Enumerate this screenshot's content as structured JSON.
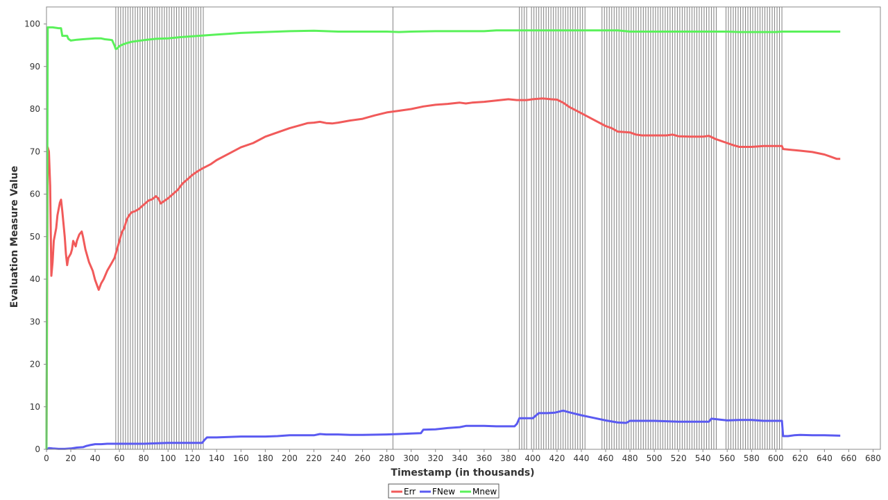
{
  "chart_data": {
    "type": "line",
    "title": "",
    "xlabel": "Timestamp (in thousands)",
    "ylabel": "Evaluation Measure Value",
    "xlim": [
      0,
      686
    ],
    "ylim": [
      0,
      104
    ],
    "xticks": [
      0,
      20,
      40,
      60,
      80,
      100,
      120,
      140,
      160,
      180,
      200,
      220,
      240,
      260,
      280,
      300,
      320,
      340,
      360,
      380,
      400,
      420,
      440,
      460,
      480,
      500,
      520,
      540,
      560,
      580,
      600,
      620,
      640,
      660,
      680
    ],
    "yticks": [
      0,
      10,
      20,
      30,
      40,
      50,
      60,
      70,
      80,
      90,
      100
    ],
    "grid": false,
    "legend_position": "bottom-center",
    "drift_markers": [
      57,
      59,
      61,
      63,
      65,
      67,
      69,
      71,
      73,
      75,
      77,
      79,
      81,
      83,
      85,
      87,
      89,
      91,
      93,
      95,
      97,
      99,
      101,
      103,
      105,
      107,
      109,
      111,
      113,
      115,
      117,
      119,
      121,
      123,
      125,
      127,
      129,
      285,
      389,
      391,
      393,
      395,
      399,
      401,
      403,
      405,
      407,
      409,
      411,
      413,
      415,
      417,
      419,
      421,
      423,
      425,
      427,
      429,
      431,
      433,
      435,
      437,
      439,
      441,
      443,
      457,
      459,
      461,
      463,
      465,
      467,
      469,
      471,
      473,
      475,
      477,
      479,
      481,
      483,
      485,
      487,
      489,
      491,
      493,
      495,
      497,
      499,
      501,
      503,
      505,
      507,
      509,
      511,
      513,
      515,
      517,
      519,
      521,
      523,
      525,
      527,
      529,
      531,
      533,
      535,
      537,
      539,
      541,
      543,
      545,
      547,
      549,
      551,
      559,
      561,
      563,
      565,
      567,
      569,
      571,
      573,
      575,
      577,
      579,
      581,
      583,
      585,
      587,
      589,
      591,
      593,
      595,
      597,
      599,
      601,
      603,
      605
    ],
    "series": [
      {
        "name": "Err",
        "color": "#f15a5a",
        "points": [
          [
            0,
            0
          ],
          [
            1,
            71
          ],
          [
            2,
            70
          ],
          [
            3,
            62
          ],
          [
            4,
            40.8
          ],
          [
            5,
            44
          ],
          [
            6,
            49
          ],
          [
            8,
            52
          ],
          [
            9,
            55
          ],
          [
            11,
            58
          ],
          [
            12,
            58.7
          ],
          [
            13,
            56
          ],
          [
            15,
            50
          ],
          [
            16,
            46
          ],
          [
            17,
            43.3
          ],
          [
            18,
            45
          ],
          [
            20,
            46
          ],
          [
            21,
            47
          ],
          [
            22,
            49
          ],
          [
            24,
            47.7
          ],
          [
            25,
            49
          ],
          [
            27,
            50.5
          ],
          [
            29,
            51.2
          ],
          [
            30,
            50
          ],
          [
            32,
            47
          ],
          [
            35,
            44
          ],
          [
            38,
            42
          ],
          [
            40,
            39.8
          ],
          [
            43,
            37.5
          ],
          [
            45,
            39
          ],
          [
            47,
            40
          ],
          [
            50,
            42
          ],
          [
            53,
            43.5
          ],
          [
            56,
            45
          ],
          [
            58,
            47
          ],
          [
            60,
            49
          ],
          [
            62,
            51
          ],
          [
            64,
            52
          ],
          [
            66,
            54
          ],
          [
            68,
            55
          ],
          [
            70,
            55.7
          ],
          [
            73,
            56
          ],
          [
            76,
            56.5
          ],
          [
            80,
            57.5
          ],
          [
            84,
            58.5
          ],
          [
            87,
            58.8
          ],
          [
            90,
            59.5
          ],
          [
            92,
            59
          ],
          [
            94,
            57.8
          ],
          [
            96,
            58.2
          ],
          [
            100,
            59
          ],
          [
            104,
            60
          ],
          [
            108,
            61
          ],
          [
            112,
            62.5
          ],
          [
            116,
            63.5
          ],
          [
            120,
            64.5
          ],
          [
            124,
            65.3
          ],
          [
            128,
            66
          ],
          [
            135,
            67
          ],
          [
            140,
            68
          ],
          [
            150,
            69.5
          ],
          [
            160,
            71
          ],
          [
            170,
            72
          ],
          [
            180,
            73.5
          ],
          [
            190,
            74.5
          ],
          [
            200,
            75.5
          ],
          [
            210,
            76.3
          ],
          [
            215,
            76.7
          ],
          [
            220,
            76.8
          ],
          [
            225,
            77
          ],
          [
            230,
            76.7
          ],
          [
            235,
            76.6
          ],
          [
            240,
            76.8
          ],
          [
            250,
            77.3
          ],
          [
            260,
            77.7
          ],
          [
            270,
            78.5
          ],
          [
            280,
            79.2
          ],
          [
            290,
            79.6
          ],
          [
            300,
            80
          ],
          [
            310,
            80.6
          ],
          [
            320,
            81
          ],
          [
            330,
            81.2
          ],
          [
            340,
            81.5
          ],
          [
            345,
            81.3
          ],
          [
            350,
            81.5
          ],
          [
            360,
            81.7
          ],
          [
            370,
            82
          ],
          [
            380,
            82.3
          ],
          [
            387,
            82.1
          ],
          [
            395,
            82.1
          ],
          [
            400,
            82.3
          ],
          [
            408,
            82.5
          ],
          [
            415,
            82.3
          ],
          [
            420,
            82.2
          ],
          [
            425,
            81.5
          ],
          [
            430,
            80.5
          ],
          [
            440,
            79
          ],
          [
            450,
            77.5
          ],
          [
            460,
            76
          ],
          [
            465,
            75.5
          ],
          [
            470,
            74.7
          ],
          [
            480,
            74.5
          ],
          [
            485,
            74
          ],
          [
            490,
            73.8
          ],
          [
            500,
            73.8
          ],
          [
            510,
            73.8
          ],
          [
            515,
            74
          ],
          [
            520,
            73.6
          ],
          [
            530,
            73.5
          ],
          [
            540,
            73.5
          ],
          [
            545,
            73.7
          ],
          [
            550,
            73
          ],
          [
            560,
            72
          ],
          [
            565,
            71.5
          ],
          [
            570,
            71.1
          ],
          [
            580,
            71.1
          ],
          [
            590,
            71.3
          ],
          [
            600,
            71.3
          ],
          [
            605,
            71.3
          ],
          [
            606,
            70.6
          ],
          [
            620,
            70.2
          ],
          [
            630,
            69.9
          ],
          [
            640,
            69.3
          ],
          [
            645,
            68.8
          ],
          [
            650,
            68.3
          ],
          [
            653,
            68.3
          ]
        ]
      },
      {
        "name": "FNew",
        "color": "#5a5af1",
        "points": [
          [
            0,
            0
          ],
          [
            2,
            0.3
          ],
          [
            5,
            0.2
          ],
          [
            10,
            0.1
          ],
          [
            15,
            0.1
          ],
          [
            20,
            0.2
          ],
          [
            25,
            0.4
          ],
          [
            30,
            0.5
          ],
          [
            33,
            0.8
          ],
          [
            36,
            1
          ],
          [
            40,
            1.2
          ],
          [
            45,
            1.2
          ],
          [
            50,
            1.3
          ],
          [
            60,
            1.3
          ],
          [
            70,
            1.3
          ],
          [
            80,
            1.3
          ],
          [
            90,
            1.4
          ],
          [
            100,
            1.5
          ],
          [
            110,
            1.5
          ],
          [
            120,
            1.5
          ],
          [
            128,
            1.5
          ],
          [
            130,
            2.2
          ],
          [
            132,
            2.8
          ],
          [
            140,
            2.8
          ],
          [
            150,
            2.9
          ],
          [
            160,
            3
          ],
          [
            180,
            3
          ],
          [
            190,
            3.1
          ],
          [
            200,
            3.3
          ],
          [
            220,
            3.3
          ],
          [
            225,
            3.6
          ],
          [
            230,
            3.5
          ],
          [
            240,
            3.5
          ],
          [
            250,
            3.4
          ],
          [
            260,
            3.4
          ],
          [
            280,
            3.5
          ],
          [
            290,
            3.6
          ],
          [
            300,
            3.7
          ],
          [
            308,
            3.8
          ],
          [
            310,
            4.6
          ],
          [
            320,
            4.7
          ],
          [
            330,
            5
          ],
          [
            340,
            5.2
          ],
          [
            345,
            5.5
          ],
          [
            360,
            5.5
          ],
          [
            370,
            5.4
          ],
          [
            385,
            5.4
          ],
          [
            387,
            6
          ],
          [
            389,
            7.3
          ],
          [
            400,
            7.3
          ],
          [
            405,
            8.5
          ],
          [
            412,
            8.5
          ],
          [
            418,
            8.6
          ],
          [
            425,
            9.1
          ],
          [
            430,
            8.7
          ],
          [
            440,
            8
          ],
          [
            450,
            7.4
          ],
          [
            460,
            6.8
          ],
          [
            470,
            6.3
          ],
          [
            477,
            6.2
          ],
          [
            480,
            6.7
          ],
          [
            490,
            6.7
          ],
          [
            500,
            6.7
          ],
          [
            510,
            6.6
          ],
          [
            520,
            6.5
          ],
          [
            530,
            6.5
          ],
          [
            545,
            6.5
          ],
          [
            547,
            7.2
          ],
          [
            560,
            6.8
          ],
          [
            570,
            6.9
          ],
          [
            580,
            6.9
          ],
          [
            590,
            6.7
          ],
          [
            605,
            6.7
          ],
          [
            606,
            3.1
          ],
          [
            610,
            3.1
          ],
          [
            615,
            3.3
          ],
          [
            620,
            3.4
          ],
          [
            630,
            3.3
          ],
          [
            640,
            3.3
          ],
          [
            653,
            3.2
          ]
        ]
      },
      {
        "name": "Mnew",
        "color": "#5af15a",
        "points": [
          [
            0,
            0
          ],
          [
            1,
            99.2
          ],
          [
            5,
            99.2
          ],
          [
            10,
            99
          ],
          [
            12,
            99
          ],
          [
            13,
            97.2
          ],
          [
            17,
            97.2
          ],
          [
            18,
            96.5
          ],
          [
            20,
            96.1
          ],
          [
            25,
            96.3
          ],
          [
            30,
            96.4
          ],
          [
            35,
            96.5
          ],
          [
            40,
            96.6
          ],
          [
            45,
            96.6
          ],
          [
            48,
            96.4
          ],
          [
            52,
            96.3
          ],
          [
            54,
            96.2
          ],
          [
            56,
            94.9
          ],
          [
            57,
            94.1
          ],
          [
            58,
            94.2
          ],
          [
            60,
            94.8
          ],
          [
            63,
            95.2
          ],
          [
            66,
            95.5
          ],
          [
            70,
            95.8
          ],
          [
            75,
            96
          ],
          [
            80,
            96.2
          ],
          [
            90,
            96.5
          ],
          [
            100,
            96.6
          ],
          [
            110,
            96.9
          ],
          [
            120,
            97.1
          ],
          [
            130,
            97.3
          ],
          [
            140,
            97.5
          ],
          [
            150,
            97.7
          ],
          [
            160,
            97.9
          ],
          [
            180,
            98.1
          ],
          [
            200,
            98.3
          ],
          [
            220,
            98.4
          ],
          [
            240,
            98.2
          ],
          [
            260,
            98.2
          ],
          [
            280,
            98.2
          ],
          [
            290,
            98.1
          ],
          [
            300,
            98.2
          ],
          [
            320,
            98.3
          ],
          [
            340,
            98.3
          ],
          [
            360,
            98.3
          ],
          [
            370,
            98.5
          ],
          [
            380,
            98.5
          ],
          [
            400,
            98.5
          ],
          [
            420,
            98.5
          ],
          [
            440,
            98.5
          ],
          [
            460,
            98.5
          ],
          [
            470,
            98.5
          ],
          [
            480,
            98.2
          ],
          [
            500,
            98.2
          ],
          [
            520,
            98.2
          ],
          [
            540,
            98.2
          ],
          [
            560,
            98.2
          ],
          [
            570,
            98.1
          ],
          [
            580,
            98.1
          ],
          [
            600,
            98.1
          ],
          [
            605,
            98.2
          ],
          [
            610,
            98.2
          ],
          [
            630,
            98.2
          ],
          [
            653,
            98.2
          ]
        ]
      }
    ]
  }
}
